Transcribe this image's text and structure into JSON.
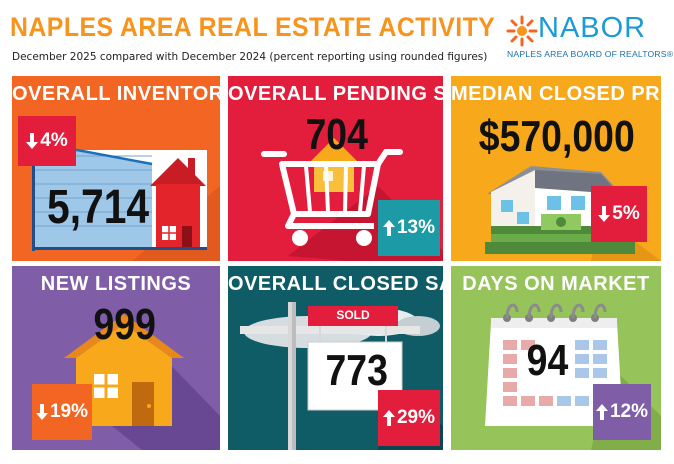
{
  "header": {
    "title": "NAPLES AREA REAL ESTATE ACTIVITY",
    "subtitle": "December 2025 compared with December 2024 (percent reporting using rounded figures)"
  },
  "logo": {
    "word": "NABOR",
    "tagline": "NAPLES AREA BOARD OF REALTORS®",
    "icon": "sunburst-icon"
  },
  "colors": {
    "orange": "#f26522",
    "red": "#e31d3c",
    "amber": "#f7a81b",
    "purple": "#7f5ea7",
    "teal": "#0f5c66",
    "green": "#96c35a",
    "badge_red": "#e31d3c",
    "badge_teal": "#1c9aa6",
    "badge_purple": "#7f5ea7",
    "badge_orange": "#f26522"
  },
  "tiles": {
    "inventory": {
      "label": "OVERALL INVENTORY",
      "value": "5,714",
      "change": "4%",
      "direction": "down",
      "icon": "house-chart-icon"
    },
    "pending": {
      "label": "OVERALL PENDING SALES",
      "value": "704",
      "change": "13%",
      "direction": "up",
      "icon": "shopping-cart-icon"
    },
    "price": {
      "label": "MEDIAN CLOSED PRICE",
      "value": "$570,000",
      "change": "5%",
      "direction": "down",
      "icon": "house-money-icon"
    },
    "listings": {
      "label": "NEW LISTINGS",
      "value": "999",
      "change": "19%",
      "direction": "down",
      "icon": "house-icon"
    },
    "closed": {
      "label": "OVERALL CLOSED SALES",
      "value": "773",
      "change": "29%",
      "direction": "up",
      "sign_text": "SOLD",
      "icon": "sold-sign-icon"
    },
    "days": {
      "label": "DAYS ON MARKET",
      "value": "94",
      "change": "12%",
      "direction": "up",
      "icon": "calendar-icon"
    }
  }
}
